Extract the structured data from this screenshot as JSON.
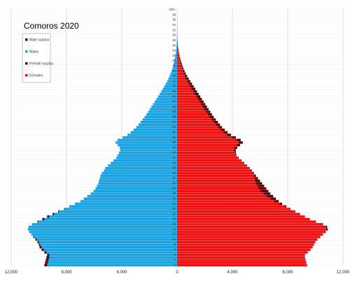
{
  "chart_data": {
    "type": "bar",
    "orientation": "horizontal-pyramid",
    "title": "Comoros 2020",
    "xlim": [
      -12000,
      12000
    ],
    "x_ticks": [
      -12000,
      -8000,
      -4000,
      0,
      4000,
      8000,
      12000
    ],
    "x_tick_labels": [
      "12,000",
      "8,000",
      "4,000",
      "0",
      "4,000",
      "8,000",
      "12,000"
    ],
    "age_labels": [
      "0",
      "1",
      "2",
      "3",
      "4",
      "5",
      "6",
      "7",
      "8",
      "9",
      "10",
      "11",
      "12",
      "13",
      "14",
      "15",
      "16",
      "17",
      "18",
      "19",
      "20",
      "21",
      "22",
      "23",
      "24",
      "25",
      "26",
      "27",
      "28",
      "29",
      "30",
      "31",
      "32",
      "33",
      "34",
      "35",
      "36",
      "37",
      "38",
      "39",
      "40",
      "41",
      "42",
      "43",
      "44",
      "45",
      "46",
      "47",
      "48",
      "49",
      "50",
      "51",
      "52",
      "53",
      "54",
      "55",
      "56",
      "57",
      "58",
      "59",
      "60",
      "61",
      "62",
      "63",
      "64",
      "65",
      "66",
      "67",
      "68",
      "69",
      "70",
      "71",
      "72",
      "73",
      "74",
      "75",
      "76",
      "77",
      "78",
      "79",
      "80",
      "81",
      "82",
      "83",
      "84",
      "85",
      "86",
      "87",
      "88",
      "89",
      "90",
      "91",
      "92",
      "93",
      "94",
      "95",
      "96",
      "97",
      "98",
      "99",
      "100+"
    ],
    "legend": {
      "placement": "top-left",
      "items": [
        {
          "label": "Male surplus",
          "color": "#5a0000"
        },
        {
          "label": "Males",
          "color": "#1aa3e0"
        },
        {
          "label": "Female surplus",
          "color": "#5a0000"
        },
        {
          "label": "Females",
          "color": "#ee1111"
        }
      ]
    },
    "colors": {
      "males": "#1aa3e0",
      "females": "#ee1111",
      "surplus": "#5a0000",
      "grid": "#c8c8c8"
    },
    "grid": true,
    "series": [
      {
        "name": "Males",
        "values": [
          9600,
          9550,
          9500,
          9450,
          9400,
          9600,
          9800,
          9950,
          10000,
          10100,
          10250,
          10400,
          10550,
          10700,
          10800,
          10750,
          10500,
          10100,
          9750,
          9400,
          9000,
          8600,
          8200,
          7800,
          7400,
          7000,
          6750,
          6500,
          6250,
          6050,
          5900,
          5800,
          5700,
          5650,
          5600,
          5550,
          5450,
          5300,
          5200,
          5000,
          4800,
          4600,
          4400,
          4300,
          4200,
          4100,
          4150,
          4300,
          4450,
          4300,
          3950,
          3600,
          3350,
          3150,
          2950,
          2800,
          2650,
          2500,
          2350,
          2220,
          2100,
          1980,
          1860,
          1740,
          1620,
          1500,
          1380,
          1260,
          1150,
          1040,
          930,
          820,
          720,
          630,
          550,
          470,
          400,
          340,
          290,
          240,
          200,
          160,
          125,
          95,
          70,
          52,
          38,
          28,
          20,
          14,
          10,
          7,
          5,
          4,
          3,
          2,
          1,
          1,
          0,
          0,
          0
        ]
      },
      {
        "name": "Females",
        "values": [
          9400,
          9350,
          9300,
          9250,
          9250,
          9450,
          9650,
          9800,
          9900,
          10000,
          10150,
          10350,
          10550,
          10750,
          10900,
          10850,
          10550,
          10050,
          9600,
          9250,
          8900,
          8550,
          8200,
          7900,
          7600,
          7350,
          7150,
          6950,
          6750,
          6600,
          6450,
          6300,
          6150,
          6000,
          5850,
          5700,
          5550,
          5400,
          5250,
          5050,
          4850,
          4650,
          4450,
          4300,
          4250,
          4250,
          4350,
          4550,
          4750,
          4600,
          4250,
          3900,
          3650,
          3450,
          3250,
          3100,
          2950,
          2800,
          2650,
          2520,
          2400,
          2280,
          2160,
          2040,
          1920,
          1800,
          1680,
          1560,
          1440,
          1320,
          1200,
          1080,
          960,
          840,
          730,
          630,
          540,
          460,
          390,
          330,
          270,
          220,
          175,
          135,
          100,
          75,
          55,
          40,
          30,
          22,
          16,
          12,
          9,
          7,
          5,
          4,
          3,
          2,
          1,
          1,
          1
        ]
      }
    ]
  }
}
